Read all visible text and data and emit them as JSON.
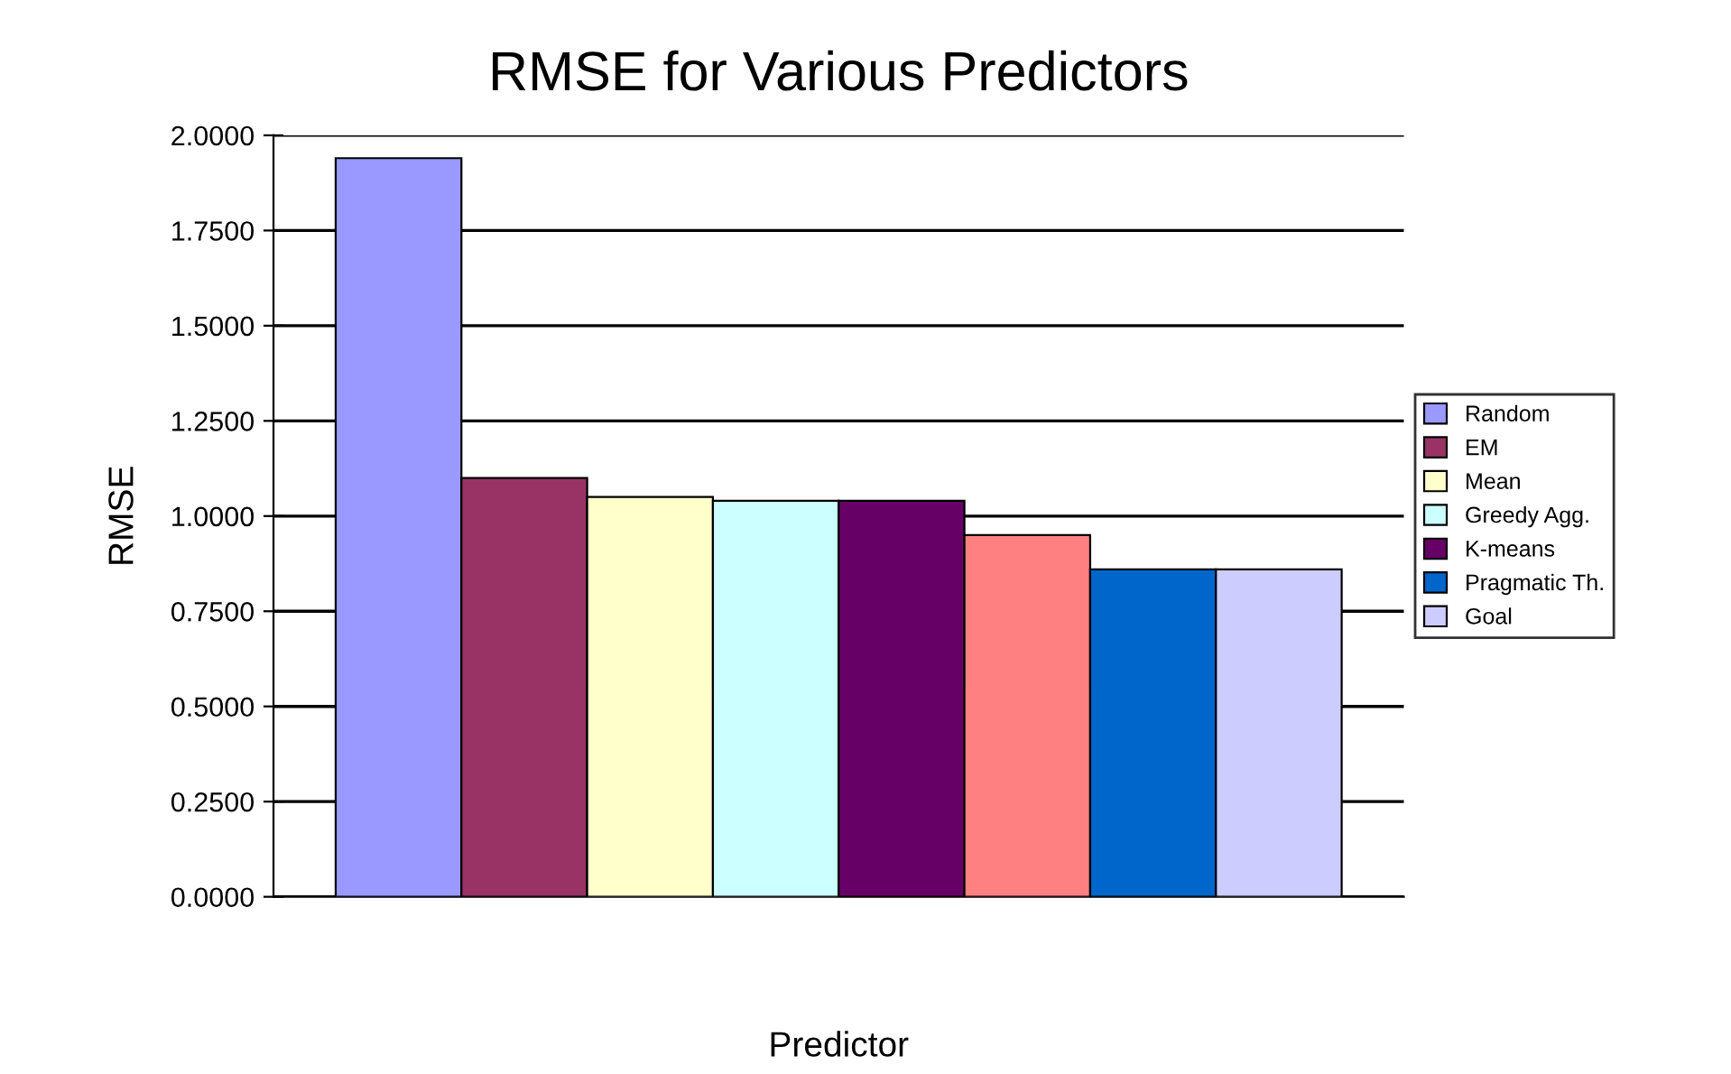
{
  "chart_data": {
    "type": "bar",
    "title": "RMSE for Various Predictors",
    "xlabel": "Predictor",
    "ylabel": "RMSE",
    "categories": [
      null
    ],
    "series": [
      {
        "name": "Random",
        "color": "#9999ff",
        "values": [
          1.94
        ]
      },
      {
        "name": "EM",
        "color": "#993366",
        "values": [
          1.1
        ]
      },
      {
        "name": "Mean",
        "color": "#ffffcc",
        "values": [
          1.05
        ]
      },
      {
        "name": "Greedy Agg.",
        "color": "#ccffff",
        "values": [
          1.04
        ]
      },
      {
        "name": "K-means",
        "color": "#660066",
        "values": [
          1.04
        ]
      },
      {
        "color": "#ff8080",
        "values": [
          0.95
        ]
      },
      {
        "name": "Pragmatic Th.",
        "color": "#0066cc",
        "values": [
          0.86
        ]
      },
      {
        "name": "Goal",
        "color": "#ccccff",
        "values": [
          0.86
        ]
      }
    ],
    "ylim": [
      0,
      2
    ],
    "yticks": [
      {
        "value": 0,
        "label": "0.0000"
      },
      {
        "value": 0.25,
        "label": "0.2500"
      },
      {
        "value": 0.5,
        "label": "0.5000"
      },
      {
        "value": 0.75,
        "label": "0.7500"
      },
      {
        "value": 1,
        "label": "1.0000"
      },
      {
        "value": 1.25,
        "label": "1.2500"
      },
      {
        "value": 1.5,
        "label": "1.5000"
      },
      {
        "value": 1.75,
        "label": "1.7500"
      },
      {
        "value": 2,
        "label": "2.0000"
      }
    ],
    "grid": "y",
    "legend": "right"
  }
}
